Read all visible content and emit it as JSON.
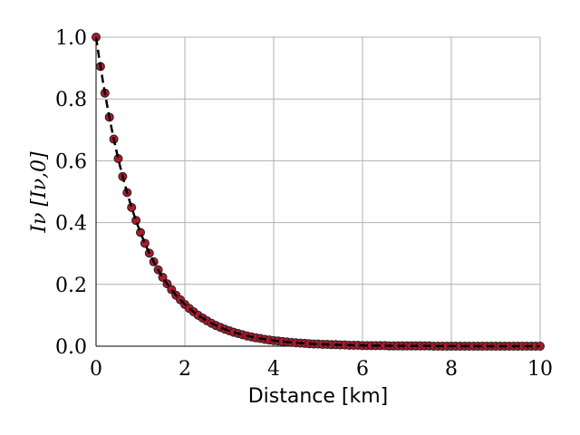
{
  "chart_data": {
    "type": "scatter",
    "title": "",
    "xlabel": "Distance [km]",
    "ylabel": "Iν [Iν,0]",
    "xlim": [
      0,
      10
    ],
    "ylim": [
      0,
      1
    ],
    "xticks": [
      "0",
      "2",
      "4",
      "6",
      "8",
      "10"
    ],
    "yticks": [
      "0.0",
      "0.2",
      "0.4",
      "0.6",
      "0.8",
      "1.0"
    ],
    "grid": true,
    "legend": "none",
    "series": [
      {
        "kind": "points",
        "color": "#b2182b",
        "x": [
          0.0,
          0.1,
          0.2,
          0.3,
          0.4,
          0.5,
          0.6,
          0.7,
          0.8,
          0.9,
          1.0,
          1.1,
          1.2,
          1.3,
          1.4,
          1.5,
          1.6,
          1.7,
          1.8,
          1.9,
          2.0,
          2.1,
          2.2,
          2.3,
          2.4,
          2.5,
          2.6,
          2.7,
          2.8,
          2.9,
          3.0,
          3.1,
          3.2,
          3.3,
          3.4,
          3.5,
          3.6,
          3.7,
          3.8,
          3.9,
          4.0,
          4.1,
          4.2,
          4.3,
          4.4,
          4.5,
          4.6,
          4.7,
          4.8,
          4.9,
          5.0,
          5.1,
          5.2,
          5.3,
          5.4,
          5.5,
          5.6,
          5.7,
          5.8,
          5.9,
          6.0,
          6.1,
          6.2,
          6.3,
          6.4,
          6.5,
          6.6,
          6.7,
          6.8,
          6.9,
          7.0,
          7.1,
          7.2,
          7.3,
          7.4,
          7.5,
          7.6,
          7.7,
          7.8,
          7.9,
          8.0,
          8.1,
          8.2,
          8.3,
          8.4,
          8.5,
          8.6,
          8.7,
          8.8,
          8.9,
          9.0,
          9.1,
          9.2,
          9.3,
          9.4,
          9.5,
          9.6,
          9.7,
          9.8,
          9.9,
          10.0
        ],
        "y": [
          1.0,
          0.905,
          0.819,
          0.741,
          0.67,
          0.607,
          0.549,
          0.497,
          0.449,
          0.407,
          0.368,
          0.333,
          0.301,
          0.273,
          0.247,
          0.223,
          0.202,
          0.183,
          0.165,
          0.15,
          0.135,
          0.122,
          0.111,
          0.1,
          0.091,
          0.082,
          0.074,
          0.067,
          0.061,
          0.055,
          0.05,
          0.045,
          0.041,
          0.037,
          0.033,
          0.03,
          0.027,
          0.025,
          0.022,
          0.02,
          0.018,
          0.017,
          0.015,
          0.014,
          0.012,
          0.011,
          0.01,
          0.009,
          0.008,
          0.007,
          0.007,
          0.006,
          0.006,
          0.005,
          0.005,
          0.004,
          0.004,
          0.003,
          0.003,
          0.003,
          0.002,
          0.002,
          0.002,
          0.002,
          0.002,
          0.002,
          0.001,
          0.001,
          0.001,
          0.001,
          0.001,
          0.001,
          0.001,
          0.001,
          0.001,
          0.001,
          0.0,
          0.0,
          0.0,
          0.0,
          0.0,
          0.0,
          0.0,
          0.0,
          0.0,
          0.0,
          0.0,
          0.0,
          0.0,
          0.0,
          0.0,
          0.0,
          0.0,
          0.0,
          0.0,
          0.0,
          0.0,
          0.0,
          0.0,
          0.0,
          0.0
        ]
      },
      {
        "kind": "dashed-line",
        "color": "#000000",
        "function": "exp(-x)",
        "x_range": [
          0,
          10
        ]
      }
    ]
  }
}
